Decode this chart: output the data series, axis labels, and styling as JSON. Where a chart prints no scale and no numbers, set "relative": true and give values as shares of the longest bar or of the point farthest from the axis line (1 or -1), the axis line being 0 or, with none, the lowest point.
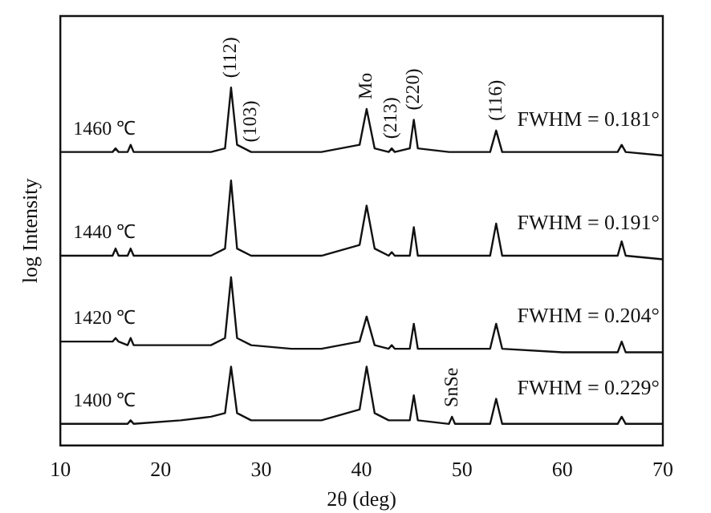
{
  "chart_data": {
    "type": "line",
    "relative": true,
    "xlabel": "2θ (deg)",
    "ylabel": "log Intensity",
    "xlim": [
      10,
      70
    ],
    "xticks": [
      10,
      20,
      30,
      40,
      50,
      60,
      70
    ],
    "grid": false,
    "legend": false,
    "marker": "none",
    "line_style": "solid",
    "x": [
      10,
      14,
      15.2,
      15.5,
      15.8,
      16.7,
      17,
      17.3,
      22,
      25,
      26.4,
      27,
      27.6,
      29,
      33,
      36,
      39.8,
      40.5,
      41.3,
      42.7,
      43,
      43.3,
      44.8,
      45.2,
      45.6,
      48.7,
      49,
      49.3,
      52.8,
      53.4,
      54,
      60,
      65.5,
      65.9,
      66.3,
      70
    ],
    "series": [
      {
        "name": "1460 ℃",
        "color": "#111111",
        "values": [
          0.82,
          0.82,
          0.82,
          0.83,
          0.82,
          0.82,
          0.84,
          0.82,
          0.82,
          0.82,
          0.83,
          1.0,
          0.84,
          0.82,
          0.82,
          0.82,
          0.84,
          0.94,
          0.83,
          0.82,
          0.83,
          0.82,
          0.83,
          0.91,
          0.83,
          0.82,
          0.82,
          0.82,
          0.82,
          0.88,
          0.82,
          0.82,
          0.82,
          0.84,
          0.82,
          0.81
        ]
      },
      {
        "name": "1440 ℃",
        "color": "#111111",
        "values": [
          0.53,
          0.53,
          0.53,
          0.55,
          0.53,
          0.53,
          0.55,
          0.53,
          0.53,
          0.53,
          0.55,
          0.74,
          0.55,
          0.53,
          0.53,
          0.53,
          0.56,
          0.67,
          0.55,
          0.53,
          0.54,
          0.53,
          0.53,
          0.61,
          0.53,
          0.53,
          0.53,
          0.53,
          0.53,
          0.62,
          0.53,
          0.53,
          0.53,
          0.57,
          0.53,
          0.52
        ]
      },
      {
        "name": "1420 ℃",
        "color": "#111111",
        "values": [
          0.29,
          0.29,
          0.29,
          0.3,
          0.29,
          0.28,
          0.3,
          0.28,
          0.28,
          0.28,
          0.3,
          0.47,
          0.3,
          0.28,
          0.27,
          0.27,
          0.29,
          0.36,
          0.28,
          0.27,
          0.28,
          0.27,
          0.27,
          0.34,
          0.27,
          0.27,
          0.27,
          0.27,
          0.27,
          0.34,
          0.27,
          0.26,
          0.26,
          0.29,
          0.26,
          0.26
        ]
      },
      {
        "name": "1400 ℃",
        "color": "#111111",
        "values": [
          0.06,
          0.06,
          0.06,
          0.06,
          0.06,
          0.06,
          0.07,
          0.06,
          0.07,
          0.08,
          0.09,
          0.22,
          0.09,
          0.07,
          0.07,
          0.07,
          0.1,
          0.22,
          0.09,
          0.07,
          0.07,
          0.07,
          0.07,
          0.14,
          0.07,
          0.06,
          0.08,
          0.06,
          0.06,
          0.13,
          0.06,
          0.06,
          0.06,
          0.08,
          0.06,
          0.06
        ]
      }
    ],
    "annotations": [
      {
        "text": "(112)",
        "x": 27,
        "y": 1.0
      },
      {
        "text": "(103)",
        "x": 29,
        "y": 0.82
      },
      {
        "text": "Mo",
        "x": 40.5,
        "y": 0.94
      },
      {
        "text": "(213)",
        "x": 43,
        "y": 0.83
      },
      {
        "text": "(220)",
        "x": 45.2,
        "y": 0.91
      },
      {
        "text": "(116)",
        "x": 53.4,
        "y": 0.88
      },
      {
        "text": "SnSe",
        "x": 49,
        "y": 0.08
      },
      "FWHM = 0.181°",
      "FWHM = 0.191°",
      "FWHM = 0.204°",
      "FWHM = 0.229°"
    ]
  }
}
